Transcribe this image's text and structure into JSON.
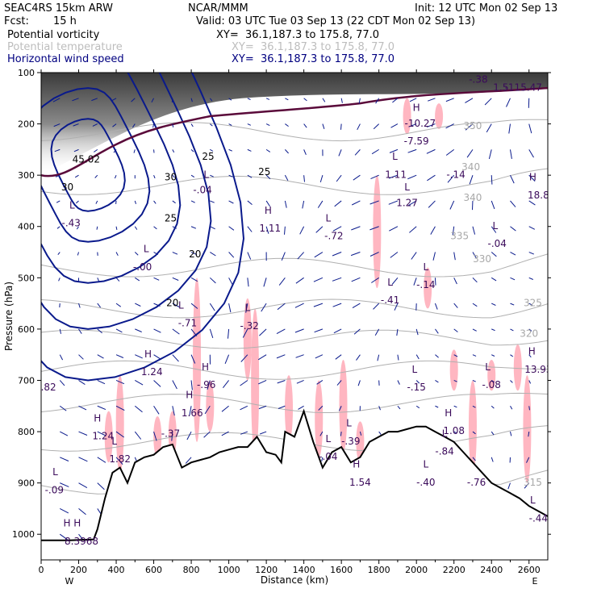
{
  "header": {
    "model": "SEAC4RS 15km ARW",
    "org": "NCAR/MMM",
    "init": "Init: 12 UTC Mon 02 Sep 13",
    "fcst_label": "Fcst:",
    "fcst_value": "15 h",
    "valid": "Valid: 03 UTC Tue 03 Sep 13 (22 CDT Mon 02 Sep 13)"
  },
  "fields": [
    {
      "name": "Potential vorticity",
      "xy": "XY=  36.1,187.3 to 175.8, 77.0",
      "color": "#000000"
    },
    {
      "name": "Potential temperature",
      "xy": "XY=  36.1,187.3 to 175.8, 77.0",
      "color": "#bdbdbd"
    },
    {
      "name": "Horizontal wind speed",
      "xy": "XY=  36.1,187.3 to 175.8, 77.0",
      "color": "#000080"
    }
  ],
  "colors": {
    "pv_fill": "#ffb6c1",
    "wind_contour": "#0a1a8c",
    "theta_contour": "#b0b0b0",
    "pv_contour": "#5a0a3a",
    "terrain": "#000000"
  },
  "chart_data": {
    "type": "cross-section",
    "xlabel": "Distance (km)",
    "ylabel": "Pressure (hPa)",
    "xlim": [
      0,
      2700
    ],
    "ylim": [
      1050,
      100
    ],
    "x_ticks": [
      0,
      200,
      400,
      600,
      800,
      1000,
      1200,
      1400,
      1600,
      1800,
      2000,
      2200,
      2400,
      2600
    ],
    "y_ticks": [
      100,
      200,
      300,
      400,
      500,
      600,
      700,
      800,
      900,
      1000
    ],
    "x_end_labels": {
      "left": "W",
      "right": "E"
    },
    "terrain": {
      "x": [
        0,
        150,
        280,
        300,
        340,
        380,
        420,
        460,
        500,
        550,
        600,
        650,
        700,
        750,
        800,
        850,
        900,
        950,
        1000,
        1050,
        1100,
        1150,
        1200,
        1250,
        1280,
        1300,
        1350,
        1400,
        1450,
        1500,
        1550,
        1600,
        1650,
        1700,
        1750,
        1800,
        1850,
        1900,
        1950,
        2000,
        2050,
        2100,
        2150,
        2200,
        2250,
        2300,
        2350,
        2400,
        2450,
        2500,
        2550,
        2600,
        2650,
        2700
      ],
      "p": [
        1012,
        1012,
        1010,
        990,
        930,
        880,
        870,
        900,
        860,
        850,
        845,
        830,
        825,
        870,
        860,
        855,
        850,
        840,
        835,
        830,
        830,
        810,
        840,
        845,
        860,
        800,
        810,
        760,
        820,
        870,
        840,
        830,
        860,
        850,
        820,
        810,
        800,
        800,
        795,
        790,
        790,
        800,
        810,
        820,
        840,
        860,
        880,
        900,
        910,
        920,
        930,
        945,
        955,
        965
      ]
    },
    "isentropes": {
      "theta": [
        300,
        305,
        310,
        315,
        320,
        325,
        330,
        340,
        350
      ],
      "p": [
        905,
        820,
        745,
        680,
        620,
        560,
        480,
        320,
        215
      ]
    },
    "wind_speed_labels": [
      {
        "text": "25",
        "x": 890,
        "p": 270
      },
      {
        "text": "25",
        "x": 1190,
        "p": 300
      },
      {
        "text": "30",
        "x": 690,
        "p": 310
      },
      {
        "text": "25",
        "x": 690,
        "p": 390
      },
      {
        "text": "20",
        "x": 820,
        "p": 460
      },
      {
        "text": "20",
        "x": 700,
        "p": 555
      },
      {
        "text": "30",
        "x": 140,
        "p": 330
      },
      {
        "text": "45.02",
        "x": 240,
        "p": 275
      }
    ],
    "pv_labels": [
      {
        "text": "L",
        "x": 165,
        "p": 365
      },
      {
        "text": "-.43",
        "x": 160,
        "p": 400
      },
      {
        "text": "L",
        "x": 560,
        "p": 450
      },
      {
        "text": "-.00",
        "x": 540,
        "p": 485
      },
      {
        "text": "L",
        "x": 880,
        "p": 305
      },
      {
        "text": "-.04",
        "x": 860,
        "p": 335
      },
      {
        "text": "H",
        "x": 1210,
        "p": 375
      },
      {
        "text": "1.11",
        "x": 1220,
        "p": 410
      },
      {
        "text": "L",
        "x": 1100,
        "p": 565
      },
      {
        "text": "-.32",
        "x": 1110,
        "p": 600
      },
      {
        "text": "L",
        "x": 745,
        "p": 560
      },
      {
        "text": "-.71",
        "x": 780,
        "p": 595
      },
      {
        "text": "H",
        "x": 570,
        "p": 655
      },
      {
        "text": "1.24",
        "x": 590,
        "p": 690
      },
      {
        "text": "H",
        "x": 875,
        "p": 680
      },
      {
        "text": "-.96",
        "x": 880,
        "p": 715
      },
      {
        "text": "H",
        "x": 790,
        "p": 735
      },
      {
        "text": "1.66",
        "x": 805,
        "p": 770
      },
      {
        "text": "-.37",
        "x": 690,
        "p": 810
      },
      {
        "text": "H",
        "x": 300,
        "p": 780
      },
      {
        "text": "1.24",
        "x": 330,
        "p": 815
      },
      {
        "text": "L",
        "x": 390,
        "p": 825
      },
      {
        "text": "1.82",
        "x": 420,
        "p": 860
      },
      {
        "text": "L",
        "x": 75,
        "p": 885
      },
      {
        "text": "-.09",
        "x": 70,
        "p": 920
      },
      {
        "text": "H H",
        "x": 165,
        "p": 985
      },
      {
        "text": "8.3968",
        "x": 215,
        "p": 1020
      },
      {
        "text": "L",
        "x": 1530,
        "p": 390
      },
      {
        "text": "-.72",
        "x": 1560,
        "p": 425
      },
      {
        "text": "L",
        "x": 1885,
        "p": 270
      },
      {
        "text": "1.11",
        "x": 1890,
        "p": 305
      },
      {
        "text": "L",
        "x": 1950,
        "p": 330
      },
      {
        "text": "1.27",
        "x": 1950,
        "p": 360
      },
      {
        "text": "H",
        "x": 2000,
        "p": 175
      },
      {
        "text": "-10.27",
        "x": 2020,
        "p": 205
      },
      {
        "text": "-7.59",
        "x": 2000,
        "p": 240
      },
      {
        "text": "-.14",
        "x": 2210,
        "p": 305
      },
      {
        "text": "L",
        "x": 2420,
        "p": 405
      },
      {
        "text": "-.04",
        "x": 2430,
        "p": 440
      },
      {
        "text": "L",
        "x": 2050,
        "p": 485
      },
      {
        "text": "-.14",
        "x": 2050,
        "p": 520
      },
      {
        "text": "L",
        "x": 1860,
        "p": 515
      },
      {
        "text": "-.41",
        "x": 1860,
        "p": 550
      },
      {
        "text": "H",
        "x": 2620,
        "p": 310
      },
      {
        "text": "18.8",
        "x": 2650,
        "p": 345
      },
      {
        "text": "H",
        "x": 2615,
        "p": 650
      },
      {
        "text": "13.93",
        "x": 2650,
        "p": 685
      },
      {
        "text": "L",
        "x": 2380,
        "p": 680
      },
      {
        "text": "-.08",
        "x": 2400,
        "p": 715
      },
      {
        "text": "L",
        "x": 1990,
        "p": 685
      },
      {
        "text": "-.15",
        "x": 2000,
        "p": 720
      },
      {
        "text": "H",
        "x": 2170,
        "p": 770
      },
      {
        "text": "1.08",
        "x": 2200,
        "p": 805
      },
      {
        "text": "L",
        "x": 2150,
        "p": 810
      },
      {
        "text": "-.84",
        "x": 2150,
        "p": 845
      },
      {
        "text": "L",
        "x": 1640,
        "p": 790
      },
      {
        "text": "-.39",
        "x": 1650,
        "p": 825
      },
      {
        "text": "L",
        "x": 1530,
        "p": 820
      },
      {
        "text": "-.04",
        "x": 1530,
        "p": 855
      },
      {
        "text": "H",
        "x": 1680,
        "p": 870
      },
      {
        "text": "1.54",
        "x": 1700,
        "p": 905
      },
      {
        "text": "L",
        "x": 2050,
        "p": 870
      },
      {
        "text": "-.40",
        "x": 2050,
        "p": 905
      },
      {
        "text": "L",
        "x": 2620,
        "p": 940
      },
      {
        "text": "-.44",
        "x": 2650,
        "p": 975
      },
      {
        "text": "-.76",
        "x": 2320,
        "p": 905
      },
      {
        "text": "-.82",
        "x": 30,
        "p": 720
      },
      {
        "text": "-.38",
        "x": 2330,
        "p": 120
      },
      {
        "text": "1.5",
        "x": 2450,
        "p": 135
      },
      {
        "text": "-115.47",
        "x": 2570,
        "p": 135
      }
    ],
    "theta_labels": [
      {
        "text": "350",
        "x": 2300,
        "p": 210
      },
      {
        "text": "340",
        "x": 2290,
        "p": 290
      },
      {
        "text": "340",
        "x": 2300,
        "p": 350
      },
      {
        "text": "335",
        "x": 2230,
        "p": 425
      },
      {
        "text": "330",
        "x": 2350,
        "p": 470
      },
      {
        "text": "325",
        "x": 2620,
        "p": 555
      },
      {
        "text": "320",
        "x": 2600,
        "p": 615
      },
      {
        "text": "315",
        "x": 2620,
        "p": 905
      }
    ]
  }
}
